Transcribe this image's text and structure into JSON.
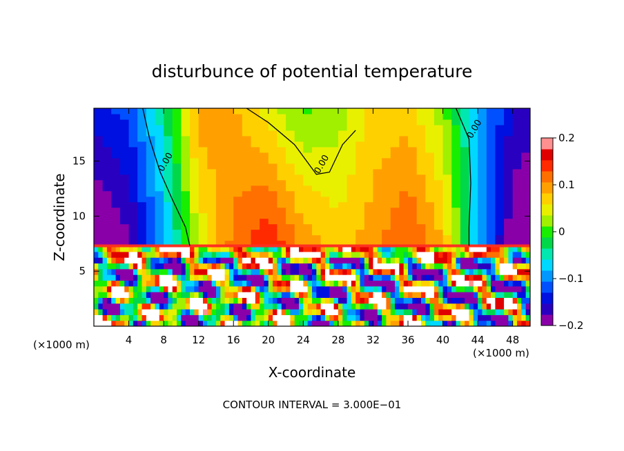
{
  "chart_data": {
    "type": "heatmap",
    "title": "disturbunce of potential temperature",
    "xlabel": "X-coordinate",
    "ylabel": "Z-coordinate",
    "x_unit_left": "(×1000 m)",
    "x_unit_right": "(×1000 m)",
    "xlim": [
      0,
      50
    ],
    "ylim": [
      0,
      19.8
    ],
    "xticks": [
      4,
      8,
      12,
      16,
      20,
      24,
      28,
      32,
      36,
      40,
      44,
      48
    ],
    "yticks": [
      5,
      10,
      15
    ],
    "zlim": [
      -0.2,
      0.2
    ],
    "colorbar_ticks": [
      {
        "value": 0.2,
        "label": "0.2"
      },
      {
        "value": 0.1,
        "label": "0.1"
      },
      {
        "value": 0.0,
        "label": "0"
      },
      {
        "value": -0.1,
        "label": "−0.1"
      },
      {
        "value": -0.2,
        "label": "−0.2"
      }
    ],
    "contour_label": "0.00",
    "contour_interval_text": "CONTOUR INTERVAL = 3.000E−01",
    "upper_field_columns": [
      {
        "x": 0,
        "z10": -0.2,
        "z18": -0.15
      },
      {
        "x": 4,
        "z10": -0.17,
        "z18": -0.13
      },
      {
        "x": 8,
        "z10": -0.08,
        "z18": -0.05
      },
      {
        "x": 12,
        "z10": 0.05,
        "z18": 0.09
      },
      {
        "x": 16,
        "z10": 0.11,
        "z18": 0.09
      },
      {
        "x": 20,
        "z10": 0.13,
        "z18": 0.06
      },
      {
        "x": 24,
        "z10": 0.08,
        "z18": 0.02
      },
      {
        "x": 28,
        "z10": 0.06,
        "z18": 0.03
      },
      {
        "x": 32,
        "z10": 0.09,
        "z18": 0.07
      },
      {
        "x": 36,
        "z10": 0.12,
        "z18": 0.08
      },
      {
        "x": 40,
        "z10": 0.07,
        "z18": 0.03
      },
      {
        "x": 44,
        "z10": -0.08,
        "z18": -0.08
      },
      {
        "x": 48,
        "z10": -0.19,
        "z18": -0.16
      },
      {
        "x": 50,
        "z10": -0.2,
        "z18": -0.17
      }
    ],
    "zero_contours": [
      [
        [
          5.6,
          19.8
        ],
        [
          6.4,
          17
        ],
        [
          7.6,
          14
        ],
        [
          9,
          11.5
        ],
        [
          10.5,
          9
        ],
        [
          11,
          7.3
        ]
      ],
      [
        [
          17.5,
          19.8
        ],
        [
          20,
          18.5
        ],
        [
          23,
          16.5
        ],
        [
          25.5,
          13.8
        ],
        [
          27,
          14
        ],
        [
          28.5,
          16.5
        ],
        [
          30,
          17.8
        ]
      ],
      [
        [
          41.5,
          19.8
        ],
        [
          43,
          17
        ],
        [
          43.2,
          13
        ],
        [
          43,
          9
        ],
        [
          43,
          7.3
        ]
      ]
    ],
    "colormap": [
      "#8a00a8",
      "#2a00c0",
      "#0010e0",
      "#0050ff",
      "#0098ff",
      "#00d8ff",
      "#00e8b0",
      "#00d84a",
      "#18ee00",
      "#a0f000",
      "#e8f000",
      "#ffd000",
      "#ffa000",
      "#ff7000",
      "#ff2a00",
      "#e00000",
      "#ff9090"
    ]
  }
}
